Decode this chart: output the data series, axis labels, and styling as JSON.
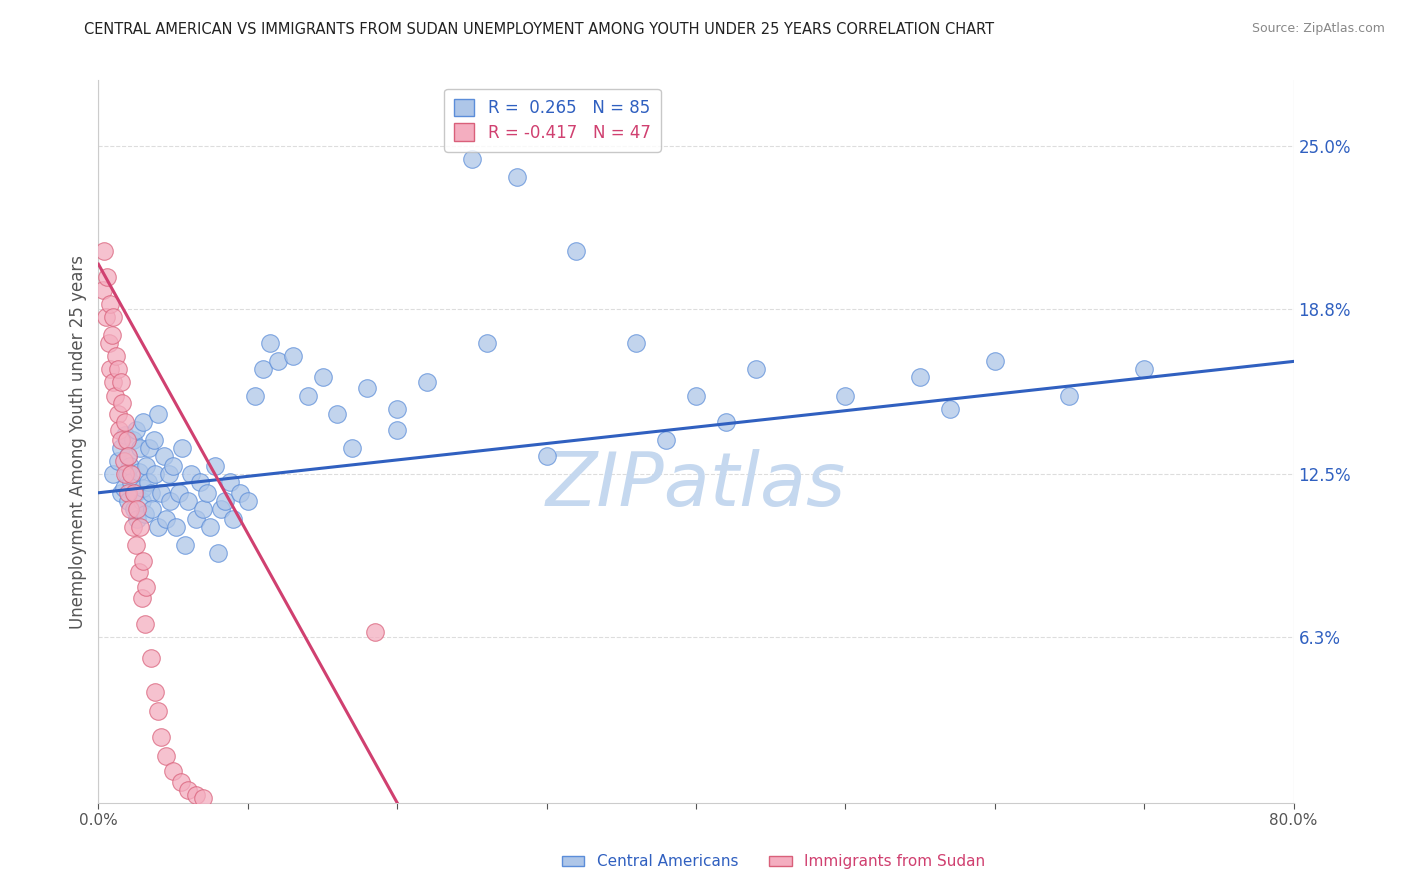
{
  "title": "CENTRAL AMERICAN VS IMMIGRANTS FROM SUDAN UNEMPLOYMENT AMONG YOUTH UNDER 25 YEARS CORRELATION CHART",
  "source": "Source: ZipAtlas.com",
  "ylabel": "Unemployment Among Youth under 25 years",
  "xmin": 0.0,
  "xmax": 0.8,
  "ymin": 0.0,
  "ymax": 0.275,
  "yticks": [
    0.0,
    0.063,
    0.125,
    0.188,
    0.25
  ],
  "ytick_labels": [
    "",
    "6.3%",
    "12.5%",
    "18.8%",
    "25.0%"
  ],
  "xticks": [
    0.0,
    0.1,
    0.2,
    0.3,
    0.4,
    0.5,
    0.6,
    0.7,
    0.8
  ],
  "xtick_labels": [
    "0.0%",
    "",
    "",
    "",
    "",
    "",
    "",
    "",
    "80.0%"
  ],
  "blue_R": 0.265,
  "blue_N": 85,
  "pink_R": -0.417,
  "pink_N": 47,
  "blue_color": "#aec6e8",
  "blue_edge_color": "#5b8dd9",
  "pink_color": "#f4aec0",
  "pink_edge_color": "#d9607a",
  "blue_line_color": "#3060c0",
  "pink_line_color": "#d04070",
  "background_color": "#ffffff",
  "grid_color": "#dddddd",
  "grid_style": "--",
  "watermark": "ZIPatlas",
  "watermark_color": "#c5d8ef",
  "blue_scatter_x": [
    0.01,
    0.013,
    0.015,
    0.015,
    0.017,
    0.018,
    0.019,
    0.02,
    0.02,
    0.021,
    0.022,
    0.023,
    0.024,
    0.025,
    0.025,
    0.026,
    0.027,
    0.028,
    0.029,
    0.03,
    0.03,
    0.031,
    0.032,
    0.033,
    0.034,
    0.035,
    0.036,
    0.037,
    0.038,
    0.04,
    0.04,
    0.042,
    0.044,
    0.045,
    0.047,
    0.048,
    0.05,
    0.052,
    0.054,
    0.056,
    0.058,
    0.06,
    0.062,
    0.065,
    0.068,
    0.07,
    0.073,
    0.075,
    0.078,
    0.082,
    0.085,
    0.088,
    0.09,
    0.095,
    0.1,
    0.105,
    0.11,
    0.115,
    0.12,
    0.13,
    0.14,
    0.15,
    0.16,
    0.18,
    0.2,
    0.22,
    0.25,
    0.28,
    0.32,
    0.36,
    0.4,
    0.44,
    0.5,
    0.55,
    0.6,
    0.65,
    0.7,
    0.57,
    0.42,
    0.38,
    0.3,
    0.26,
    0.2,
    0.17,
    0.08
  ],
  "blue_scatter_y": [
    0.125,
    0.13,
    0.118,
    0.135,
    0.12,
    0.14,
    0.125,
    0.115,
    0.132,
    0.128,
    0.122,
    0.138,
    0.112,
    0.118,
    0.142,
    0.108,
    0.126,
    0.135,
    0.115,
    0.12,
    0.145,
    0.11,
    0.128,
    0.122,
    0.135,
    0.118,
    0.112,
    0.138,
    0.125,
    0.105,
    0.148,
    0.118,
    0.132,
    0.108,
    0.125,
    0.115,
    0.128,
    0.105,
    0.118,
    0.135,
    0.098,
    0.115,
    0.125,
    0.108,
    0.122,
    0.112,
    0.118,
    0.105,
    0.128,
    0.112,
    0.115,
    0.122,
    0.108,
    0.118,
    0.115,
    0.155,
    0.165,
    0.175,
    0.168,
    0.17,
    0.155,
    0.162,
    0.148,
    0.158,
    0.15,
    0.16,
    0.245,
    0.238,
    0.21,
    0.175,
    0.155,
    0.165,
    0.155,
    0.162,
    0.168,
    0.155,
    0.165,
    0.15,
    0.145,
    0.138,
    0.132,
    0.175,
    0.142,
    0.135,
    0.095
  ],
  "pink_scatter_x": [
    0.003,
    0.004,
    0.005,
    0.006,
    0.007,
    0.008,
    0.008,
    0.009,
    0.01,
    0.01,
    0.011,
    0.012,
    0.013,
    0.013,
    0.014,
    0.015,
    0.015,
    0.016,
    0.017,
    0.018,
    0.018,
    0.019,
    0.02,
    0.02,
    0.021,
    0.022,
    0.023,
    0.024,
    0.025,
    0.026,
    0.027,
    0.028,
    0.029,
    0.03,
    0.031,
    0.032,
    0.035,
    0.038,
    0.04,
    0.042,
    0.045,
    0.05,
    0.055,
    0.06,
    0.065,
    0.07,
    0.185
  ],
  "pink_scatter_y": [
    0.195,
    0.21,
    0.185,
    0.2,
    0.175,
    0.19,
    0.165,
    0.178,
    0.16,
    0.185,
    0.155,
    0.17,
    0.148,
    0.165,
    0.142,
    0.16,
    0.138,
    0.152,
    0.13,
    0.145,
    0.125,
    0.138,
    0.118,
    0.132,
    0.112,
    0.125,
    0.105,
    0.118,
    0.098,
    0.112,
    0.088,
    0.105,
    0.078,
    0.092,
    0.068,
    0.082,
    0.055,
    0.042,
    0.035,
    0.025,
    0.018,
    0.012,
    0.008,
    0.005,
    0.003,
    0.002,
    0.065
  ],
  "blue_line_x0": 0.0,
  "blue_line_y0": 0.118,
  "blue_line_x1": 0.8,
  "blue_line_y1": 0.168,
  "pink_line_x0": 0.0,
  "pink_line_y0": 0.205,
  "pink_line_x1": 0.2,
  "pink_line_y1": 0.0
}
